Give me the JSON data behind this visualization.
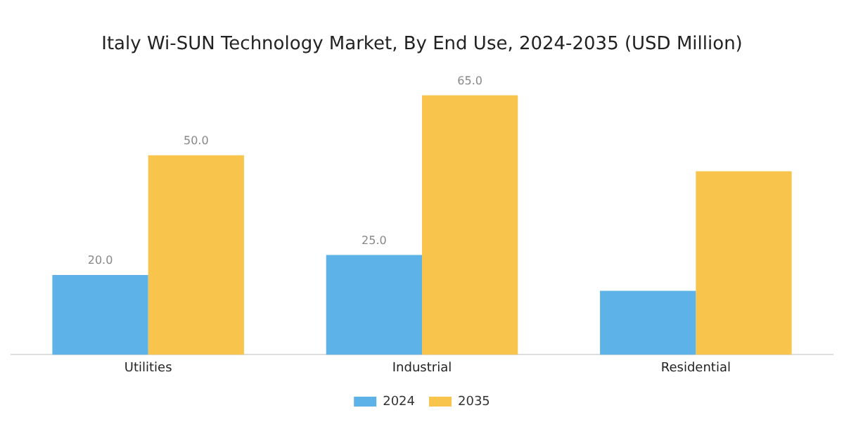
{
  "chart_data": {
    "type": "bar",
    "title": "Italy Wi-SUN Technology Market, By End Use, 2024-2035 (USD Million)",
    "categories": [
      "Utilities",
      "Industrial",
      "Residential"
    ],
    "series": [
      {
        "name": "2024",
        "color": "#5db3e8",
        "values": [
          20.0,
          25.0,
          16
        ],
        "value_labels": [
          "20.0",
          "25.0",
          null
        ]
      },
      {
        "name": "2035",
        "color": "#f9c44c",
        "values": [
          50.0,
          65.0,
          46
        ],
        "value_labels": [
          "50.0",
          "65.0",
          null
        ]
      }
    ],
    "grid": false,
    "legend": "bottom",
    "tick_labels": "x"
  }
}
